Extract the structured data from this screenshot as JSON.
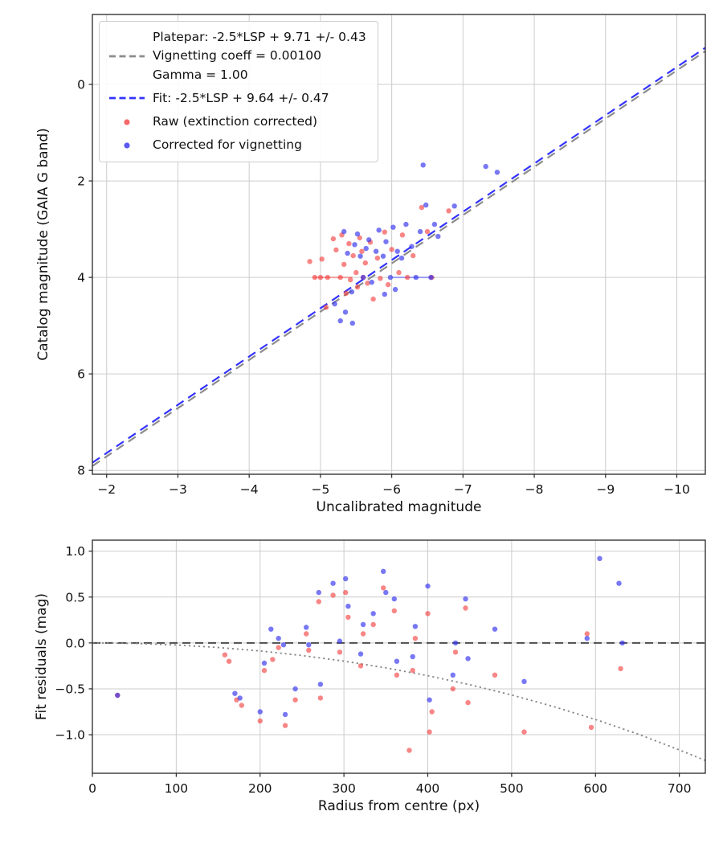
{
  "figure": {
    "background": "#ffffff"
  },
  "chart_data": [
    {
      "id": "magnitude-fit",
      "type": "scatter",
      "title": "",
      "xlabel": "Uncalibrated magnitude",
      "ylabel": "Catalog magnitude (GAIA G band)",
      "xlim": [
        -1.8,
        -10.4
      ],
      "ylim": [
        -1.45,
        8.08
      ],
      "xtick_values": [
        -2,
        -3,
        -4,
        -5,
        -6,
        -7,
        -8,
        -9,
        -10
      ],
      "xtick_labels": [
        "−2",
        "−3",
        "−4",
        "−5",
        "−6",
        "−7",
        "−8",
        "−9",
        "−10"
      ],
      "ytick_values": [
        0,
        2,
        4,
        6,
        8
      ],
      "ytick_labels": [
        "0",
        "2",
        "4",
        "6",
        "8"
      ],
      "grid": true,
      "lines": [
        {
          "name": "platepar-line",
          "color": "#8c8c8c",
          "dash": "11,7",
          "width": 2.2,
          "points": [
            [
              -1.8,
              7.91
            ],
            [
              -10.4,
              -0.69
            ]
          ]
        },
        {
          "name": "fit-line",
          "color": "#3333ff",
          "dash": "11,7",
          "width": 2.2,
          "points": [
            [
              -1.8,
              7.84
            ],
            [
              -10.4,
              -0.76
            ]
          ]
        },
        {
          "name": "saturated-row-red",
          "color": "rgba(255,90,90,0.5)",
          "dash": "",
          "width": 2,
          "points": [
            [
              -4.9,
              4.0
            ],
            [
              -5.45,
              4.0
            ]
          ]
        },
        {
          "name": "saturated-row-blue",
          "color": "rgba(90,90,255,0.5)",
          "dash": "",
          "width": 2,
          "points": [
            [
              -6.0,
              4.0
            ],
            [
              -6.6,
              4.0
            ]
          ]
        }
      ],
      "series": [
        {
          "name": "raw-extinction-corrected",
          "color": "rgba(244,54,54,0.6)",
          "marker_radius": 3.2,
          "points": [
            [
              -4.85,
              3.67
            ],
            [
              -4.92,
              4.0
            ],
            [
              -5.0,
              4.0
            ],
            [
              -5.02,
              3.62
            ],
            [
              -5.08,
              4.62
            ],
            [
              -5.1,
              4.0
            ],
            [
              -5.18,
              3.2
            ],
            [
              -5.22,
              3.43
            ],
            [
              -5.28,
              4.0
            ],
            [
              -5.3,
              3.12
            ],
            [
              -5.33,
              3.73
            ],
            [
              -5.36,
              4.33
            ],
            [
              -5.4,
              3.3
            ],
            [
              -5.42,
              4.05
            ],
            [
              -5.46,
              3.55
            ],
            [
              -5.5,
              3.9
            ],
            [
              -5.52,
              4.2
            ],
            [
              -5.55,
              3.18
            ],
            [
              -5.58,
              3.46
            ],
            [
              -5.6,
              4.0
            ],
            [
              -5.63,
              3.7
            ],
            [
              -5.66,
              4.12
            ],
            [
              -5.7,
              3.27
            ],
            [
              -5.74,
              4.45
            ],
            [
              -5.8,
              3.6
            ],
            [
              -5.84,
              4.02
            ],
            [
              -5.9,
              3.06
            ],
            [
              -5.95,
              4.15
            ],
            [
              -6.0,
              3.42
            ],
            [
              -6.1,
              3.9
            ],
            [
              -6.15,
              3.12
            ],
            [
              -6.22,
              4.0
            ],
            [
              -6.3,
              3.55
            ],
            [
              -6.42,
              2.55
            ],
            [
              -6.5,
              3.05
            ],
            [
              -6.56,
              4.0
            ],
            [
              -6.8,
              2.62
            ]
          ]
        },
        {
          "name": "corrected-for-vignetting",
          "color": "rgba(48,48,238,0.65)",
          "marker_radius": 3.2,
          "points": [
            [
              -5.2,
              4.55
            ],
            [
              -5.28,
              4.9
            ],
            [
              -5.33,
              3.05
            ],
            [
              -5.35,
              4.72
            ],
            [
              -5.38,
              3.5
            ],
            [
              -5.44,
              4.3
            ],
            [
              -5.45,
              4.95
            ],
            [
              -5.48,
              3.32
            ],
            [
              -5.52,
              3.1
            ],
            [
              -5.56,
              3.56
            ],
            [
              -5.6,
              4.0
            ],
            [
              -5.64,
              3.4
            ],
            [
              -5.68,
              3.22
            ],
            [
              -5.72,
              4.1
            ],
            [
              -5.78,
              3.46
            ],
            [
              -5.82,
              3.02
            ],
            [
              -5.88,
              3.56
            ],
            [
              -5.9,
              4.35
            ],
            [
              -5.92,
              3.26
            ],
            [
              -5.98,
              4.0
            ],
            [
              -6.02,
              2.96
            ],
            [
              -6.05,
              4.25
            ],
            [
              -6.08,
              3.46
            ],
            [
              -6.14,
              3.6
            ],
            [
              -6.2,
              2.9
            ],
            [
              -6.28,
              3.36
            ],
            [
              -6.34,
              4.0
            ],
            [
              -6.4,
              3.05
            ],
            [
              -6.44,
              1.67
            ],
            [
              -6.48,
              2.5
            ],
            [
              -6.55,
              4.0
            ],
            [
              -6.6,
              2.9
            ],
            [
              -6.65,
              3.15
            ],
            [
              -6.88,
              2.52
            ],
            [
              -7.32,
              1.7
            ],
            [
              -7.48,
              1.82
            ]
          ]
        }
      ],
      "legend": {
        "entries": [
          {
            "handle": "dash",
            "color": "#8c8c8c",
            "lines": [
              "Platepar: -2.5*LSP + 9.71 +/- 0.43",
              "Vignetting coeff = 0.00100",
              "Gamma = 1.00"
            ]
          },
          {
            "handle": "dash",
            "color": "#3333ff",
            "lines": [
              "Fit: -2.5*LSP + 9.64 +/- 0.47"
            ]
          },
          {
            "handle": "dot",
            "color": "rgba(244,54,54,0.75)",
            "lines": [
              "Raw (extinction corrected)"
            ]
          },
          {
            "handle": "dot",
            "color": "rgba(48,48,238,0.8)",
            "lines": [
              "Corrected for vignetting"
            ]
          }
        ]
      }
    },
    {
      "id": "fit-residuals",
      "type": "scatter",
      "title": "",
      "xlabel": "Radius from centre (px)",
      "ylabel": "Fit residuals (mag)",
      "xlim": [
        0,
        731
      ],
      "ylim": [
        1.12,
        -1.42
      ],
      "xtick_values": [
        0,
        100,
        200,
        300,
        400,
        500,
        600,
        700
      ],
      "xtick_labels": [
        "0",
        "100",
        "200",
        "300",
        "400",
        "500",
        "600",
        "700"
      ],
      "ytick_values": [
        1.0,
        0.5,
        0.0,
        -0.5,
        -1.0
      ],
      "ytick_labels": [
        "1.0",
        "0.5",
        "0.0",
        "−0.5",
        "−1.0"
      ],
      "grid": true,
      "lines": [
        {
          "name": "zero-line",
          "color": "#4d4d4d",
          "dash": "10,6",
          "width": 2,
          "points": [
            [
              0,
              0
            ],
            [
              731,
              0
            ]
          ]
        },
        {
          "name": "vignetting-model-curve",
          "color": "#858585",
          "dash": "2.2,3.8",
          "width": 1.8,
          "points": [
            [
              0,
              0
            ],
            [
              50,
              -0.005
            ],
            [
              100,
              -0.022
            ],
            [
              150,
              -0.049
            ],
            [
              200,
              -0.087
            ],
            [
              250,
              -0.137
            ],
            [
              300,
              -0.198
            ],
            [
              350,
              -0.272
            ],
            [
              400,
              -0.357
            ],
            [
              450,
              -0.455
            ],
            [
              500,
              -0.567
            ],
            [
              550,
              -0.693
            ],
            [
              600,
              -0.834
            ],
            [
              650,
              -0.991
            ],
            [
              700,
              -1.165
            ],
            [
              731,
              -1.281
            ]
          ]
        }
      ],
      "series": [
        {
          "name": "raw-residuals",
          "color": "rgba(244,54,54,0.6)",
          "marker_radius": 3.2,
          "points": [
            [
              30,
              -0.57
            ],
            [
              158,
              -0.13
            ],
            [
              163,
              -0.2
            ],
            [
              172,
              -0.62
            ],
            [
              178,
              -0.68
            ],
            [
              200,
              -0.85
            ],
            [
              205,
              -0.3
            ],
            [
              215,
              -0.18
            ],
            [
              222,
              -0.05
            ],
            [
              230,
              -0.9
            ],
            [
              242,
              -0.62
            ],
            [
              255,
              0.1
            ],
            [
              258,
              -0.08
            ],
            [
              270,
              0.45
            ],
            [
              272,
              -0.6
            ],
            [
              287,
              0.52
            ],
            [
              295,
              -0.1
            ],
            [
              302,
              0.55
            ],
            [
              305,
              0.28
            ],
            [
              320,
              -0.25
            ],
            [
              323,
              0.1
            ],
            [
              335,
              0.2
            ],
            [
              347,
              0.6
            ],
            [
              360,
              0.35
            ],
            [
              363,
              -0.35
            ],
            [
              378,
              -1.17
            ],
            [
              382,
              -0.3
            ],
            [
              385,
              0.05
            ],
            [
              400,
              0.32
            ],
            [
              402,
              -0.97
            ],
            [
              405,
              -0.75
            ],
            [
              430,
              -0.5
            ],
            [
              433,
              -0.1
            ],
            [
              445,
              0.38
            ],
            [
              448,
              -0.65
            ],
            [
              480,
              -0.35
            ],
            [
              515,
              -0.97
            ],
            [
              590,
              0.1
            ],
            [
              595,
              -0.92
            ],
            [
              630,
              -0.28
            ]
          ]
        },
        {
          "name": "corrected-residuals",
          "color": "rgba(48,48,238,0.65)",
          "marker_radius": 3.2,
          "points": [
            [
              30,
              -0.57
            ],
            [
              170,
              -0.55
            ],
            [
              176,
              -0.6
            ],
            [
              200,
              -0.75
            ],
            [
              205,
              -0.22
            ],
            [
              213,
              0.15
            ],
            [
              222,
              0.05
            ],
            [
              228,
              -0.02
            ],
            [
              230,
              -0.78
            ],
            [
              242,
              -0.5
            ],
            [
              255,
              0.17
            ],
            [
              258,
              -0.02
            ],
            [
              270,
              0.55
            ],
            [
              272,
              -0.45
            ],
            [
              287,
              0.65
            ],
            [
              295,
              0.02
            ],
            [
              302,
              0.7
            ],
            [
              305,
              0.4
            ],
            [
              320,
              -0.12
            ],
            [
              323,
              0.2
            ],
            [
              335,
              0.32
            ],
            [
              347,
              0.78
            ],
            [
              350,
              0.55
            ],
            [
              360,
              0.48
            ],
            [
              363,
              -0.2
            ],
            [
              382,
              -0.15
            ],
            [
              385,
              0.18
            ],
            [
              400,
              0.62
            ],
            [
              402,
              -0.62
            ],
            [
              430,
              -0.35
            ],
            [
              433,
              0.0
            ],
            [
              445,
              0.48
            ],
            [
              448,
              -0.17
            ],
            [
              480,
              0.15
            ],
            [
              515,
              -0.42
            ],
            [
              590,
              0.05
            ],
            [
              605,
              0.92
            ],
            [
              628,
              0.65
            ],
            [
              632,
              0.0
            ]
          ]
        }
      ]
    }
  ]
}
